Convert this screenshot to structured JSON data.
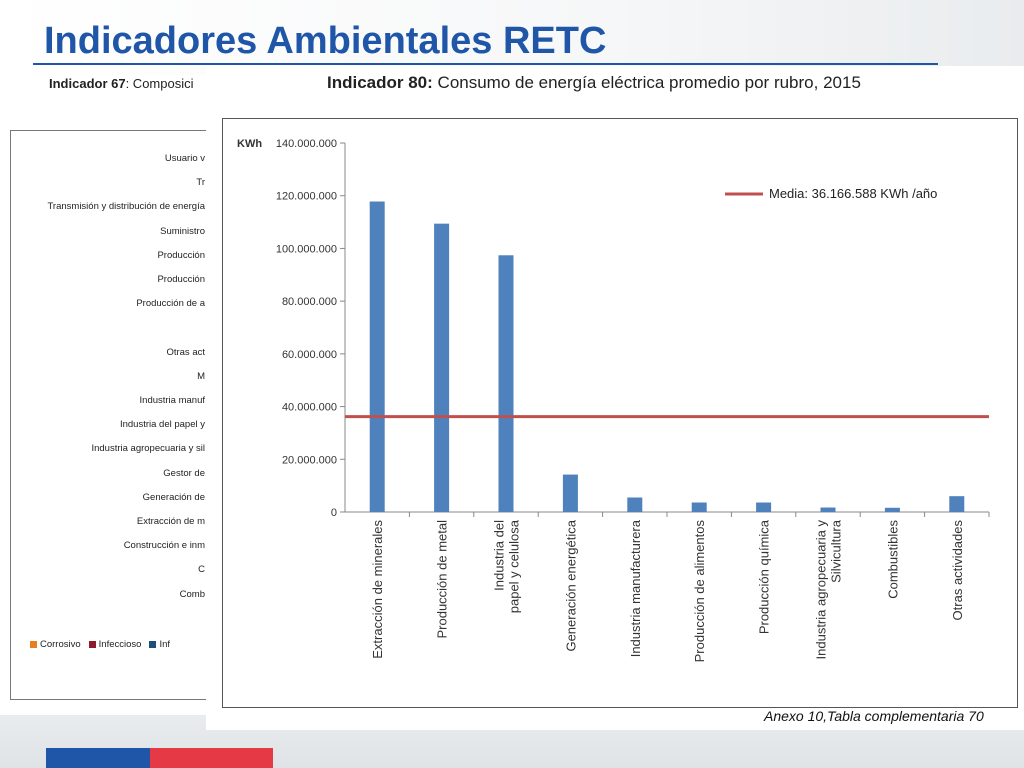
{
  "header": {
    "title": "Indicadores Ambientales RETC"
  },
  "indicator67": {
    "heading_bold": "Indicador 67",
    "heading_rest": ": Composici",
    "rows": [
      "Usuario v",
      "Tr",
      "Transmisión y distribución de energía",
      "Suministro",
      "Producción",
      "Producción",
      "Producción de a",
      "",
      "Otras act",
      "M",
      "Industria manuf",
      "Industria del papel y",
      "Industria agropecuaria y sil",
      "Gestor de",
      "Generación de",
      "Extracción de m",
      "Construcción e inm",
      "C",
      "Comb"
    ],
    "legend": [
      {
        "label": "Corrosivo",
        "color": "#e67e22"
      },
      {
        "label": "Infeccioso",
        "color": "#8e1b2e"
      },
      {
        "label": "Inf",
        "color": "#1f4e79"
      }
    ]
  },
  "indicator80": {
    "heading_bold": "Indicador 80:",
    "heading_rest": " Consumo de energía eléctrica promedio por rubro, 2015"
  },
  "chart_data": {
    "type": "bar",
    "ylabel": "KWh",
    "ylim": [
      0,
      140000000
    ],
    "yticks": [
      0,
      20000000,
      40000000,
      60000000,
      80000000,
      100000000,
      120000000,
      140000000
    ],
    "ytick_labels": [
      "0",
      "20.000.000",
      "40.000.000",
      "60.000.000",
      "80.000.000",
      "100.000.000",
      "120.000.000",
      "140.000.000"
    ],
    "categories": [
      [
        "Extracción de minerales"
      ],
      [
        "Producción de metal"
      ],
      [
        "Industria del",
        "papel y celulosa"
      ],
      [
        "Generación energética"
      ],
      [
        "Industria manufacturera"
      ],
      [
        "Producción de alimentos"
      ],
      [
        "Producción química"
      ],
      [
        "Industria agropecuaria y",
        "Silvicultura"
      ],
      [
        "Combustibles"
      ],
      [
        "Otras actividades"
      ]
    ],
    "values": [
      117800000,
      109400000,
      97400000,
      14200000,
      5500000,
      3600000,
      3600000,
      1700000,
      1600000,
      6000000
    ],
    "bar_color": "#4f81bd",
    "reference_line": {
      "value": 36166588,
      "label": "Media: 36.166.588 KWh /año",
      "color": "#c0504d"
    },
    "grid": false,
    "legend": "top-right"
  },
  "footer": {
    "source": "Anexo 10,Tabla complementaria 70"
  }
}
